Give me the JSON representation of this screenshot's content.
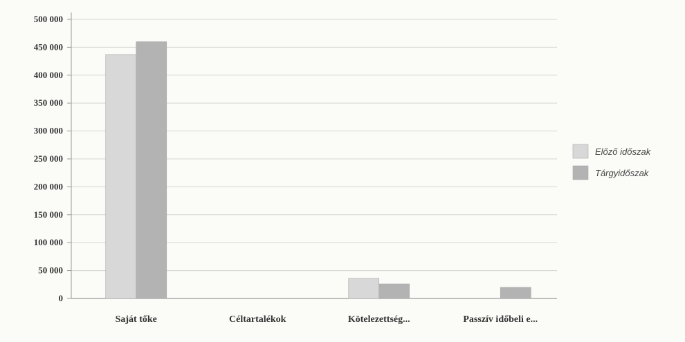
{
  "chart_data": {
    "type": "bar",
    "categories": [
      "Saját tőke",
      "Céltartalékok",
      "Kötelezettség...",
      "Passzív időbeli e..."
    ],
    "series": [
      {
        "name": "Előző időszak",
        "values": [
          437000,
          0,
          36000,
          0
        ],
        "color": "#d8d8d8"
      },
      {
        "name": "Tárgyidőszak",
        "values": [
          460000,
          0,
          26000,
          20000
        ],
        "color": "#b3b3b3"
      }
    ],
    "ylim": [
      0,
      500000
    ],
    "yticks": [
      0,
      50000,
      100000,
      150000,
      200000,
      250000,
      300000,
      350000,
      400000,
      450000,
      500000
    ],
    "ytick_labels": [
      "0",
      "50 000",
      "100 000",
      "150 000",
      "200 000",
      "250 000",
      "300 000",
      "350 000",
      "400 000",
      "450 000",
      "500 000"
    ],
    "title": "",
    "xlabel": "",
    "ylabel": "",
    "grid": true,
    "legend_position": "right"
  }
}
